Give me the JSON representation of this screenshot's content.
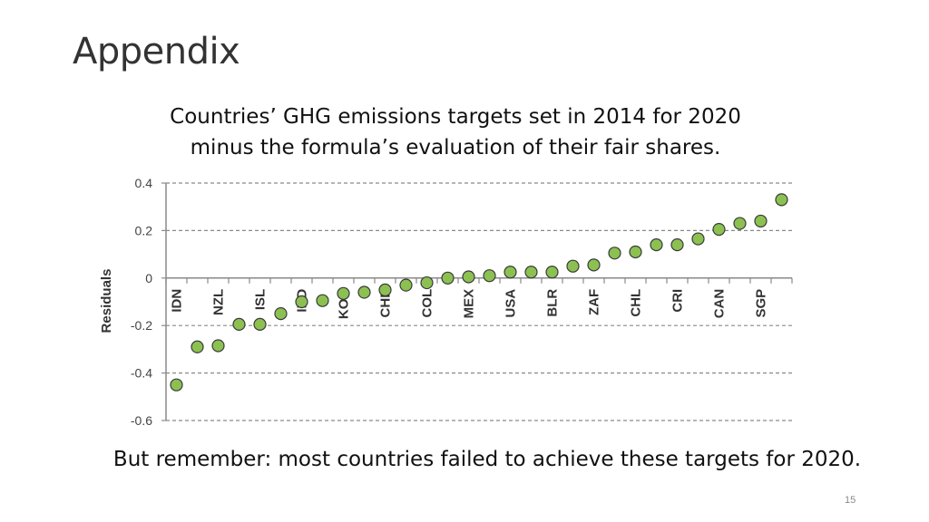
{
  "slide": {
    "title": "Appendix",
    "footnote": "But remember: most countries failed to achieve these targets for 2020.",
    "page_number": "15"
  },
  "chart_data": {
    "type": "scatter",
    "title_lines": [
      "Countries’ GHG emissions targets set in 2014 for 2020",
      "minus the formula’s evaluation of their fair shares."
    ],
    "ylabel": "Residuals",
    "xlabel": "",
    "ylim": [
      -0.6,
      0.4
    ],
    "yticks": [
      0.4,
      0.2,
      0,
      -0.2,
      -0.4,
      -0.6
    ],
    "ytick_labels": [
      "0.4",
      "0.2",
      "0",
      "-0.2",
      "-0.4",
      "-0.6"
    ],
    "grid": "horizontal-dashed",
    "marker_color": "#8cc152",
    "marker_edge": "#3a3a3a",
    "x_labels": [
      "IDN",
      "NZL",
      "ISL",
      "IND",
      "KOR",
      "CHE",
      "COL",
      "MEX",
      "USA",
      "BLR",
      "ZAF",
      "CHL",
      "CRI",
      "CAN",
      "SGP"
    ],
    "x_label_positions": [
      1,
      3,
      5,
      7,
      9,
      11,
      13,
      15,
      17,
      19,
      21,
      23,
      25,
      27,
      29
    ],
    "x": [
      1,
      2,
      3,
      4,
      5,
      6,
      7,
      8,
      9,
      10,
      11,
      12,
      13,
      14,
      15,
      16,
      17,
      18,
      19,
      20,
      21,
      22,
      23,
      24,
      25,
      26,
      27,
      28,
      29,
      30
    ],
    "values": [
      -0.45,
      -0.29,
      -0.285,
      -0.195,
      -0.195,
      -0.15,
      -0.1,
      -0.095,
      -0.065,
      -0.06,
      -0.05,
      -0.03,
      -0.02,
      0.0,
      0.005,
      0.01,
      0.025,
      0.025,
      0.025,
      0.05,
      0.055,
      0.105,
      0.11,
      0.14,
      0.14,
      0.165,
      0.205,
      0.23,
      0.24,
      0.33
    ]
  }
}
